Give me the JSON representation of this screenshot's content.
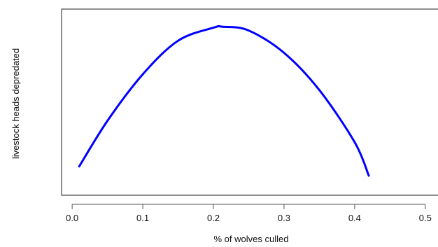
{
  "chart_data": {
    "type": "line",
    "title": "",
    "xlabel": "% of wolves culled",
    "ylabel": "livestock heads depredated",
    "xlim": [
      -0.015,
      0.52
    ],
    "ylim": [
      0,
      1
    ],
    "x_ticks": [
      "0.0",
      "0.1",
      "0.2",
      "0.3",
      "0.4",
      "0.5"
    ],
    "y_ticks_shown": false,
    "grid": false,
    "legend": "none",
    "series": [
      {
        "color": "#0000ff",
        "x": [
          0.01,
          0.05,
          0.1,
          0.15,
          0.2,
          0.2135,
          0.25,
          0.3,
          0.35,
          0.4,
          0.42
        ],
        "y": [
          0.155,
          0.4,
          0.65,
          0.83,
          0.9,
          0.905,
          0.885,
          0.765,
          0.565,
          0.285,
          0.105
        ]
      }
    ]
  }
}
